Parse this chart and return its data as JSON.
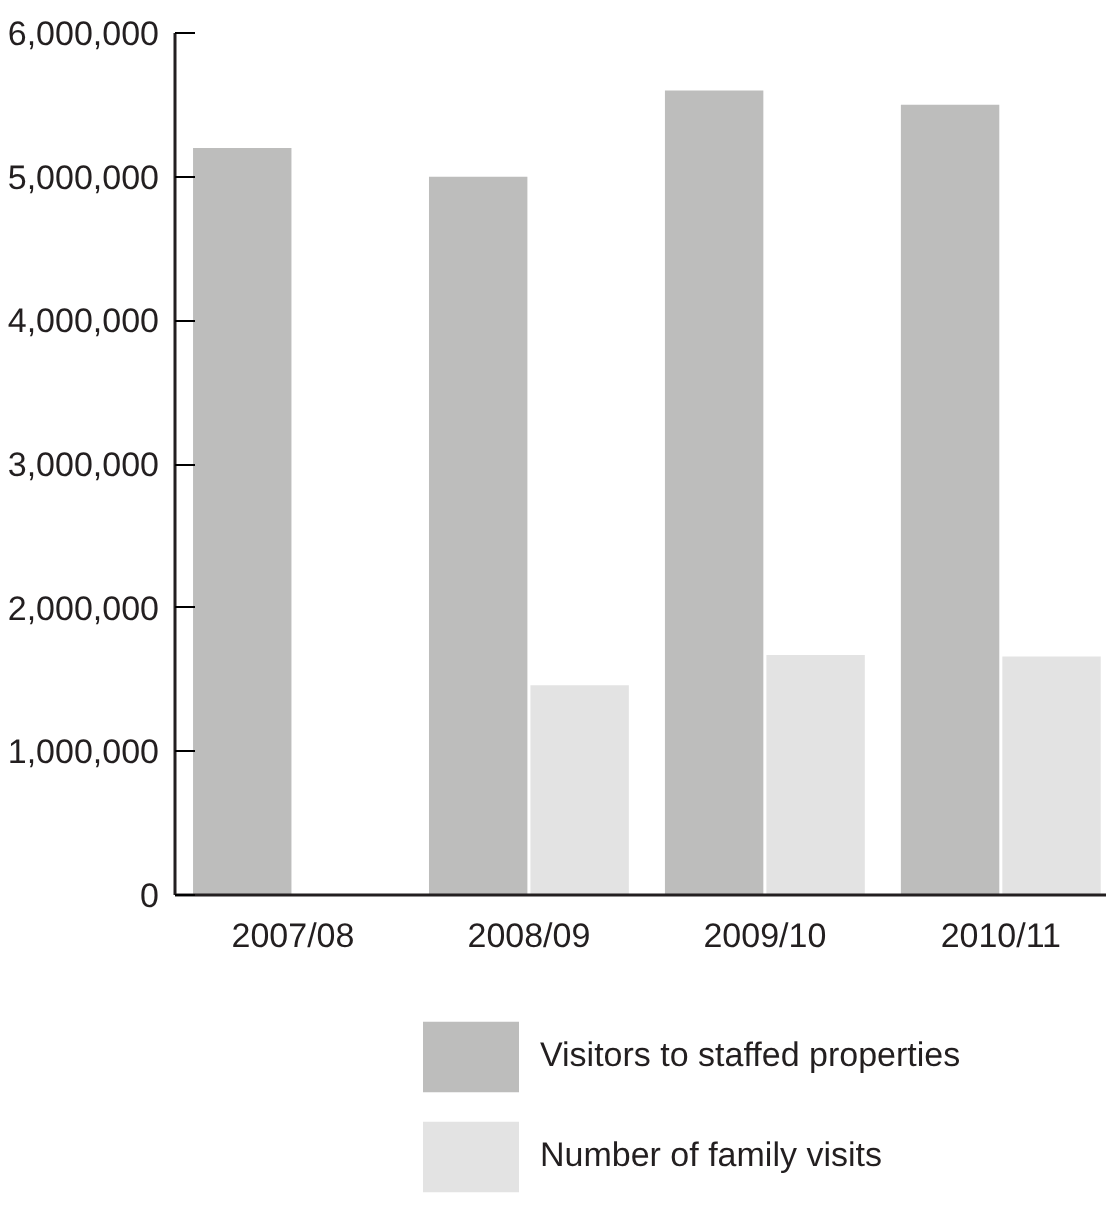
{
  "chart_data": {
    "type": "bar",
    "categories": [
      "2007/08",
      "2008/09",
      "2009/10",
      "2010/11"
    ],
    "series": [
      {
        "name": "Visitors to staffed properties",
        "color": "#bdbdbc",
        "values": [
          5200000,
          5000000,
          5600000,
          5500000
        ]
      },
      {
        "name": "Number of family visits",
        "color": "#e3e3e3",
        "values": [
          null,
          1460000,
          1670000,
          1660000
        ]
      }
    ],
    "ylim": [
      0,
      6000000
    ],
    "yticks": [
      {
        "value": 0,
        "label": "0"
      },
      {
        "value": 1000000,
        "label": "1,000,000"
      },
      {
        "value": 2000000,
        "label": "2,000,000"
      },
      {
        "value": 3000000,
        "label": "3,000,000"
      },
      {
        "value": 4000000,
        "label": "4,000,000"
      },
      {
        "value": 5000000,
        "label": "5,000,000"
      },
      {
        "value": 6000000,
        "label": "6,000,000"
      }
    ],
    "grid": false,
    "legend": "bottom"
  }
}
